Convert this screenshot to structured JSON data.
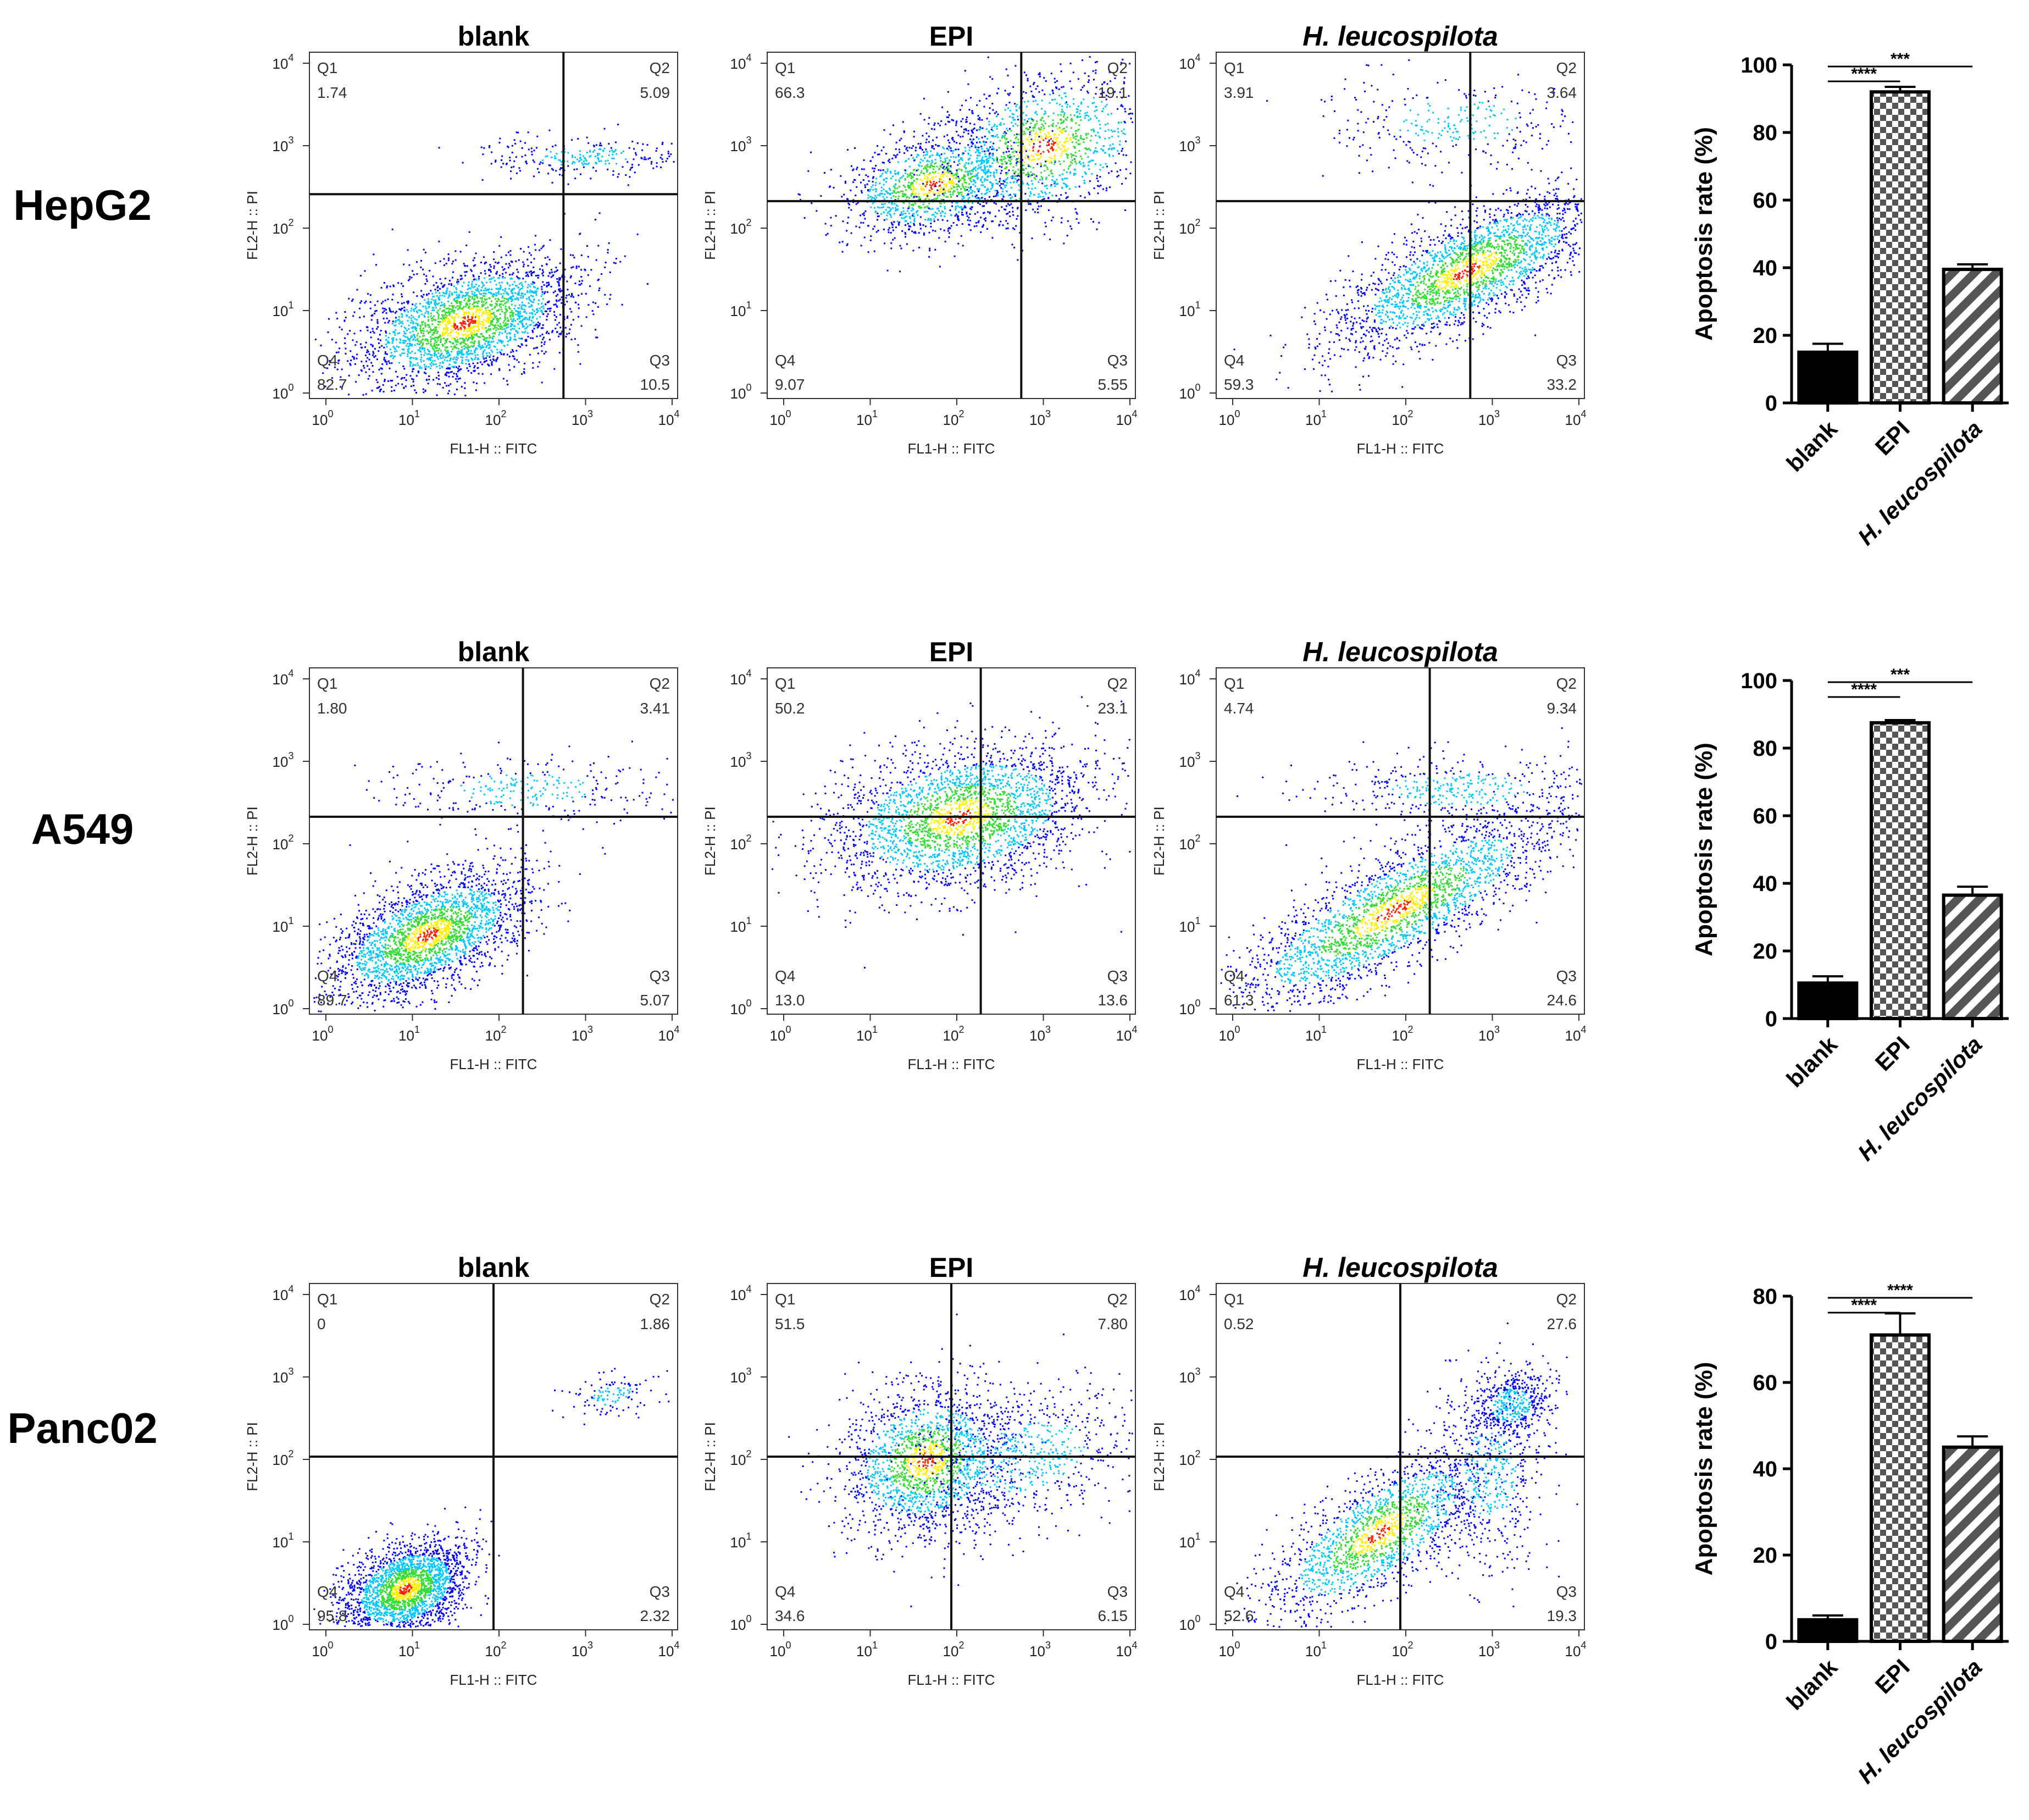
{
  "figure": {
    "rows": [
      {
        "label": "HepG2",
        "panels": [
          {
            "title": "blank",
            "q1": "Q1",
            "q1v": "1.74",
            "q2": "Q2",
            "q2v": "5.09",
            "q3": "Q3",
            "q3v": "10.5",
            "q4": "Q4",
            "q4v": "82.7"
          },
          {
            "title": "EPI",
            "q1": "Q1",
            "q1v": "66.3",
            "q2": "Q2",
            "q2v": "19.1",
            "q3": "Q3",
            "q3v": "5.55",
            "q4": "Q4",
            "q4v": "9.07"
          },
          {
            "title": "H. leucospilota",
            "q1": "Q1",
            "q1v": "3.91",
            "q2": "Q2",
            "q2v": "3.64",
            "q3": "Q3",
            "q3v": "33.2",
            "q4": "Q4",
            "q4v": "59.3"
          }
        ]
      },
      {
        "label": "A549",
        "panels": [
          {
            "title": "blank",
            "q1": "Q1",
            "q1v": "1.80",
            "q2": "Q2",
            "q2v": "3.41",
            "q3": "Q3",
            "q3v": "5.07",
            "q4": "Q4",
            "q4v": "89.7"
          },
          {
            "title": "EPI",
            "q1": "Q1",
            "q1v": "50.2",
            "q2": "Q2",
            "q2v": "23.1",
            "q3": "Q3",
            "q3v": "13.6",
            "q4": "Q4",
            "q4v": "13.0"
          },
          {
            "title": "H. leucospilota",
            "q1": "Q1",
            "q1v": "4.74",
            "q2": "Q2",
            "q2v": "9.34",
            "q3": "Q3",
            "q3v": "24.6",
            "q4": "Q4",
            "q4v": "61.3"
          }
        ]
      },
      {
        "label": "Panc02",
        "panels": [
          {
            "title": "blank",
            "q1": "Q1",
            "q1v": "0",
            "q2": "Q2",
            "q2v": "1.86",
            "q3": "Q3",
            "q3v": "2.32",
            "q4": "Q4",
            "q4v": "95.8"
          },
          {
            "title": "EPI",
            "q1": "Q1",
            "q1v": "51.5",
            "q2": "Q2",
            "q2v": "7.80",
            "q3": "Q3",
            "q3v": "6.15",
            "q4": "Q4",
            "q4v": "34.6"
          },
          {
            "title": "H. leucospilota",
            "q1": "Q1",
            "q1v": "0.52",
            "q2": "Q2",
            "q2v": "27.6",
            "q3": "Q3",
            "q3v": "19.3",
            "q4": "Q4",
            "q4v": "52.6"
          }
        ]
      }
    ],
    "scatter_axes": {
      "xlabel": "FL1-H :: FITC",
      "ylabel": "FL2-H :: PI",
      "tick_base": "10",
      "tick_exponents": [
        "0",
        "1",
        "2",
        "3",
        "4"
      ]
    }
  },
  "chart_data": [
    {
      "type": "bar",
      "title": "HepG2",
      "categories": [
        "blank",
        "EPI",
        "H. leucospilota"
      ],
      "values": [
        15,
        92,
        39.5
      ],
      "errors": [
        2.5,
        1.5,
        1.5
      ],
      "ylabel": "Apoptosis rate (%)",
      "ylim": [
        0,
        100
      ],
      "yticks": [
        "0",
        "20",
        "40",
        "60",
        "80",
        "100"
      ],
      "significance": [
        {
          "from": "blank",
          "to": "EPI",
          "label": "****"
        },
        {
          "from": "blank",
          "to": "H. leucospilota",
          "label": "***"
        }
      ]
    },
    {
      "type": "bar",
      "title": "A549",
      "categories": [
        "blank",
        "EPI",
        "H. leucospilota"
      ],
      "values": [
        10.5,
        87.5,
        36.5
      ],
      "errors": [
        2,
        0.8,
        2.5
      ],
      "ylabel": "Apoptosis rate (%)",
      "ylim": [
        0,
        100
      ],
      "yticks": [
        "0",
        "20",
        "40",
        "60",
        "80",
        "100"
      ],
      "significance": [
        {
          "from": "blank",
          "to": "EPI",
          "label": "****"
        },
        {
          "from": "blank",
          "to": "H. leucospilota",
          "label": "***"
        }
      ]
    },
    {
      "type": "bar",
      "title": "Panc02",
      "categories": [
        "blank",
        "EPI",
        "H. leucospilota"
      ],
      "values": [
        5,
        71,
        45
      ],
      "errors": [
        1,
        5,
        2.5
      ],
      "ylabel": "Apoptosis rate (%)",
      "ylim": [
        0,
        80
      ],
      "yticks": [
        "0",
        "20",
        "40",
        "60",
        "80"
      ],
      "significance": [
        {
          "from": "blank",
          "to": "EPI",
          "label": "****"
        },
        {
          "from": "blank",
          "to": "H. leucospilota",
          "label": "****"
        }
      ]
    }
  ],
  "colors": {
    "bar_blank": "#000000",
    "bar_pattern": "#777777",
    "density_low": "#0000ff",
    "density_mid": "#00c8ff",
    "density_mid2": "#33dd33",
    "density_high": "#ffee00",
    "density_peak": "#ff2200"
  }
}
